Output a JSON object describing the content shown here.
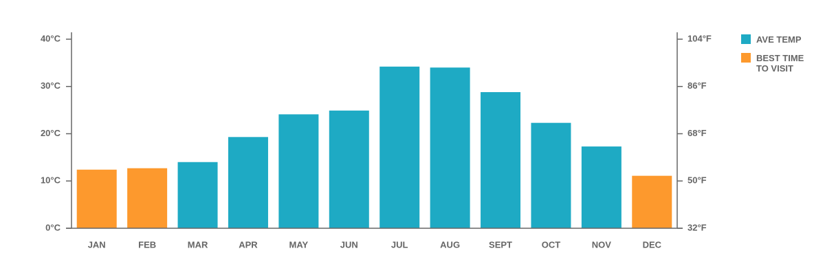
{
  "chart_data": {
    "type": "bar",
    "categories": [
      "JAN",
      "FEB",
      "MAR",
      "APR",
      "MAY",
      "JUN",
      "JUL",
      "AUG",
      "SEPT",
      "OCT",
      "NOV",
      "DEC"
    ],
    "series": [
      {
        "name": "AVE TEMP",
        "color": "#1eaac4",
        "values": [
          null,
          null,
          14.0,
          19.3,
          24.1,
          24.9,
          34.2,
          34.0,
          28.8,
          22.3,
          17.3,
          null
        ]
      },
      {
        "name": "BEST TIME TO VISIT",
        "color": "#fd992d",
        "values": [
          12.4,
          12.7,
          null,
          null,
          null,
          null,
          null,
          null,
          null,
          null,
          null,
          11.1
        ]
      }
    ],
    "ylim": [
      0,
      40
    ],
    "yticks": [
      {
        "value": 0,
        "label": "0°C"
      },
      {
        "value": 10,
        "label": "10°C"
      },
      {
        "value": 20,
        "label": "20°C"
      },
      {
        "value": 30,
        "label": "30°C"
      },
      {
        "value": 40,
        "label": "40°C"
      }
    ],
    "y2lim": [
      32,
      104
    ],
    "y2ticks": [
      {
        "value": 32,
        "label": "32°F"
      },
      {
        "value": 50,
        "label": "50°F"
      },
      {
        "value": 68,
        "label": "68°F"
      },
      {
        "value": 86,
        "label": "86°F"
      },
      {
        "value": 104,
        "label": "104°F"
      }
    ],
    "grid": false
  }
}
